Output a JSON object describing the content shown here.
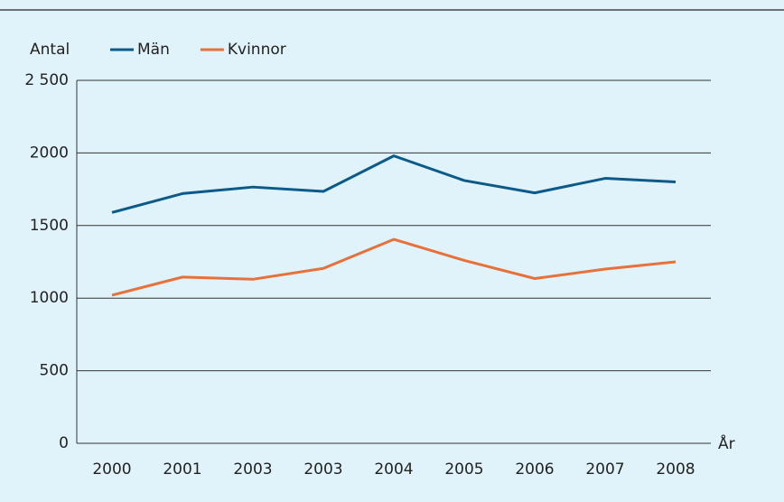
{
  "chart_data": {
    "type": "line",
    "ylabel": "Antal",
    "xlabel": "År",
    "categories": [
      "2000",
      "2001",
      "2003",
      "2003",
      "2004",
      "2005",
      "2006",
      "2007",
      "2008"
    ],
    "series": [
      {
        "name": "Män",
        "color": "#0b5a8a",
        "values": [
          1590,
          1720,
          1765,
          1735,
          1980,
          1810,
          1725,
          1825,
          1800
        ]
      },
      {
        "name": "Kvinnor",
        "color": "#e8703a",
        "values": [
          1020,
          1145,
          1130,
          1205,
          1405,
          1260,
          1135,
          1200,
          1250
        ]
      }
    ],
    "ylim": [
      0,
      2500
    ],
    "yticks": [
      0,
      500,
      1000,
      1500,
      2000,
      {
        "value": 2500,
        "label": "2 500"
      }
    ],
    "grid": true
  }
}
